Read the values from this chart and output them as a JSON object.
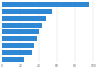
{
  "values": [
    95,
    55,
    48,
    44,
    41,
    38,
    35,
    33,
    24
  ],
  "bar_color": "#2e88d4",
  "background_color": "#ffffff",
  "xlim": [
    0,
    105
  ],
  "figsize": [
    1.0,
    0.71
  ],
  "dpi": 100,
  "xtick_vals": [
    0,
    20,
    40,
    60,
    80,
    100
  ],
  "bar_height": 0.75
}
